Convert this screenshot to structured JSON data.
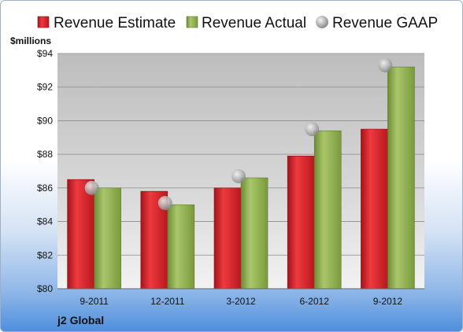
{
  "chart_data": {
    "type": "bar",
    "unit_label": "$millions",
    "company": "j2 Global",
    "categories": [
      "9-2011",
      "12-2011",
      "3-2012",
      "6-2012",
      "9-2012"
    ],
    "series": [
      {
        "name": "Revenue Estimate",
        "kind": "bar",
        "color": "#cc1f26",
        "values": [
          86.5,
          85.8,
          86.0,
          87.9,
          89.5
        ]
      },
      {
        "name": "Revenue Actual",
        "kind": "bar",
        "color": "#8aab4a",
        "values": [
          86.0,
          85.0,
          86.6,
          89.4,
          93.2
        ]
      },
      {
        "name": "Revenue GAAP",
        "kind": "marker",
        "color": "#b7b7b7",
        "values": [
          86.0,
          85.1,
          86.7,
          89.5,
          93.3
        ]
      }
    ],
    "ylim": [
      80,
      94
    ],
    "yticks": [
      "$80",
      "$82",
      "$84",
      "$86",
      "$88",
      "$90",
      "$92",
      "$94"
    ],
    "grid": true,
    "legend_position": "top"
  }
}
